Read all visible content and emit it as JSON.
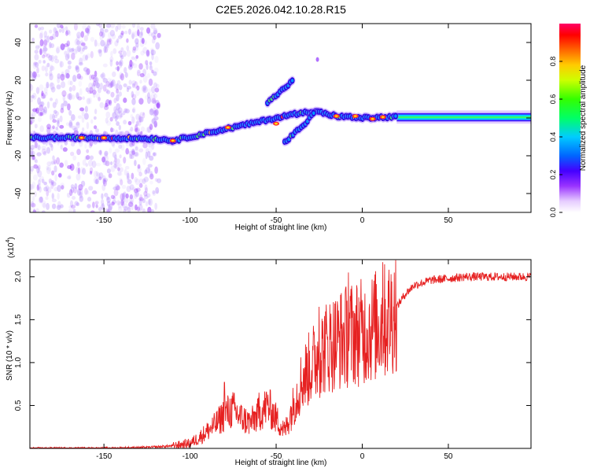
{
  "title": "C2E5.2026.042.10.28.R15",
  "chart_data": [
    {
      "type": "heatmap",
      "name": "spectrogram",
      "xlabel": "Height of straight line (km)",
      "ylabel": "Frequency (Hz)",
      "xlim": [
        -193,
        98
      ],
      "ylim": [
        -50,
        50
      ],
      "xticks": [
        -150,
        -100,
        -50,
        0,
        50
      ],
      "yticks": [
        -40,
        -20,
        0,
        20,
        40
      ],
      "colorbar": {
        "label": "Normalized spectral amplitude",
        "range": [
          0.0,
          1.0
        ],
        "ticks": [
          0.0,
          0.2,
          0.4,
          0.6,
          0.8
        ],
        "tick_labels": [
          "0.0",
          "0.2",
          "0.4",
          "0.6",
          "0.8"
        ]
      },
      "tracks": [
        {
          "name": "main-line-left",
          "points": [
            [
              -193,
              -10.5
            ],
            [
              -150,
              -10.5
            ],
            [
              -120,
              -11
            ],
            [
              -110,
              -12
            ]
          ],
          "amplitude": 0.5
        },
        {
          "name": "main-line-mid",
          "points": [
            [
              -110,
              -12
            ],
            [
              -95,
              -9
            ],
            [
              -80,
              -6
            ],
            [
              -60,
              -2
            ],
            [
              -40,
              2
            ],
            [
              -25,
              4
            ]
          ],
          "amplitude": 0.45
        },
        {
          "name": "upper-branch",
          "points": [
            [
              -55,
              8
            ],
            [
              -45,
              16
            ],
            [
              -40,
              20
            ]
          ],
          "amplitude": 0.4
        },
        {
          "name": "lower-branch",
          "points": [
            [
              -45,
              -13
            ],
            [
              -38,
              -7
            ],
            [
              -32,
              -2
            ],
            [
              -28,
              3
            ]
          ],
          "amplitude": 0.4
        },
        {
          "name": "main-line-right",
          "points": [
            [
              -25,
              3
            ],
            [
              -15,
              1
            ],
            [
              0,
              0
            ],
            [
              20,
              0.5
            ],
            [
              98,
              0.5
            ]
          ],
          "amplitude": 0.55
        }
      ]
    },
    {
      "type": "line",
      "name": "snr",
      "xlabel": "Height of straight line (km)",
      "ylabel": "SNR (10 * v/v)",
      "scale_label": "(x10",
      "scale_exponent": "4",
      "xlim": [
        -193,
        98
      ],
      "ylim": [
        0,
        2.2
      ],
      "xticks": [
        -150,
        -100,
        -50,
        0,
        50
      ],
      "yticks": [
        0.5,
        1.0,
        1.5,
        2.0
      ],
      "ytick_labels": [
        "0.5",
        "1.0",
        "1.5",
        "2.0"
      ],
      "envelope": {
        "x": [
          -193,
          -150,
          -125,
          -110,
          -100,
          -95,
          -90,
          -85,
          -80,
          -75,
          -70,
          -65,
          -60,
          -55,
          -50,
          -45,
          -40,
          -35,
          -30,
          -25,
          -20,
          -15,
          -10,
          -5,
          0,
          5,
          10,
          15,
          20,
          25,
          30,
          40,
          50,
          60,
          70,
          80,
          90,
          98
        ],
        "y": [
          0.0,
          0.0,
          0.01,
          0.03,
          0.06,
          0.12,
          0.2,
          0.28,
          0.4,
          0.45,
          0.35,
          0.3,
          0.4,
          0.5,
          0.35,
          0.2,
          0.5,
          0.8,
          0.95,
          1.1,
          1.2,
          1.25,
          1.3,
          1.35,
          1.35,
          1.4,
          1.45,
          1.5,
          1.65,
          1.8,
          1.9,
          1.96,
          1.98,
          2.0,
          2.0,
          2.0,
          2.0,
          2.0
        ]
      },
      "peaks": [
        {
          "x": -80,
          "y": 0.77
        },
        {
          "x": -60,
          "y": 0.65
        },
        {
          "x": -25,
          "y": 1.65
        },
        {
          "x": -8,
          "y": 2.05
        },
        {
          "x": 12,
          "y": 2.17
        }
      ]
    }
  ]
}
